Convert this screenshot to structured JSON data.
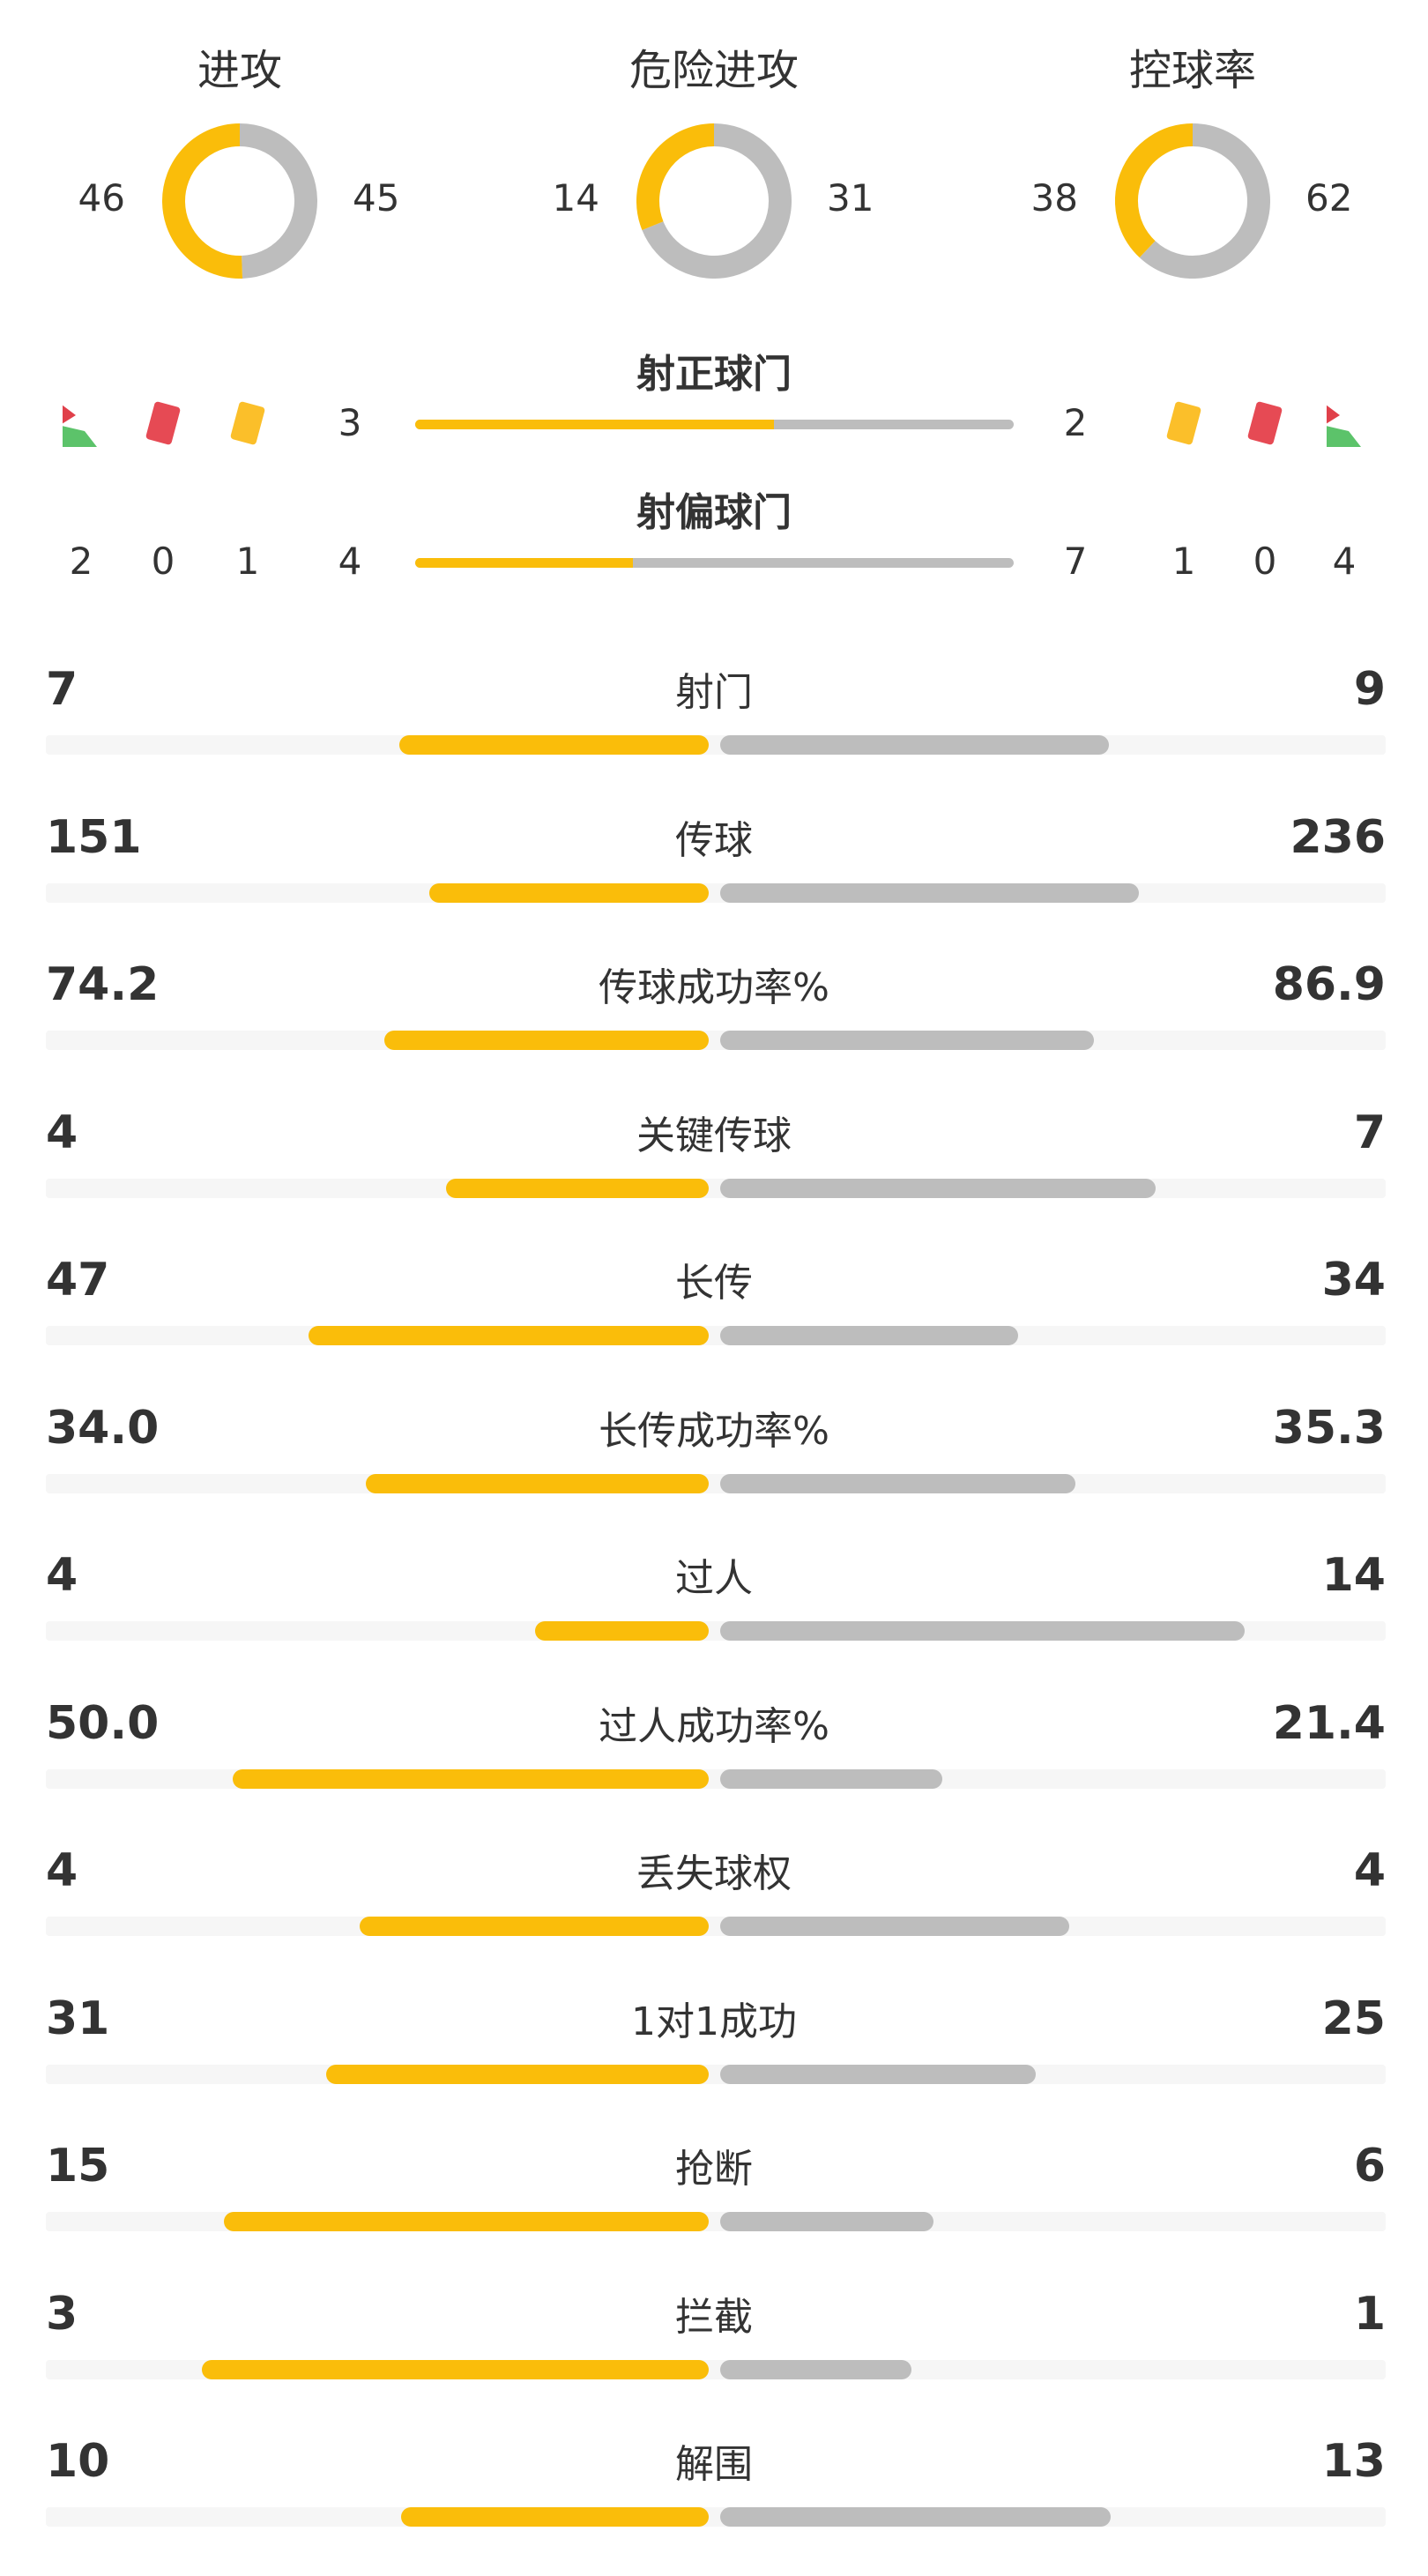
{
  "colors": {
    "home": "#fabd0a",
    "away": "#bdbdbd",
    "track": "#f6f6f6"
  },
  "donuts": [
    {
      "title": "进攻",
      "home": 46,
      "away": 45
    },
    {
      "title": "危险进攻",
      "home": 14,
      "away": 31
    },
    {
      "title": "控球率",
      "home": 38,
      "away": 62
    }
  ],
  "shots_on": {
    "title": "射正球门",
    "home": 3,
    "away": 2
  },
  "shots_off": {
    "title": "射偏球门",
    "home": 4,
    "away": 7
  },
  "home_counts": {
    "corners": 2,
    "red_cards": 0,
    "yellow_cards": 1
  },
  "away_counts": {
    "corners": 4,
    "red_cards": 0,
    "yellow_cards": 1
  },
  "icons": {
    "corner": "corner-flag-icon",
    "red": "red-card-icon",
    "yellow": "yellow-card-icon"
  },
  "stats": [
    {
      "label": "射门",
      "home": "7",
      "away": "9"
    },
    {
      "label": "传球",
      "home": "151",
      "away": "236"
    },
    {
      "label": "传球成功率%",
      "home": "74.2",
      "away": "86.9"
    },
    {
      "label": "关键传球",
      "home": "4",
      "away": "7"
    },
    {
      "label": "长传",
      "home": "47",
      "away": "34"
    },
    {
      "label": "长传成功率%",
      "home": "34.0",
      "away": "35.3"
    },
    {
      "label": "过人",
      "home": "4",
      "away": "14"
    },
    {
      "label": "过人成功率%",
      "home": "50.0",
      "away": "21.4"
    },
    {
      "label": "丢失球权",
      "home": "4",
      "away": "4"
    },
    {
      "label": "1对1成功",
      "home": "31",
      "away": "25"
    },
    {
      "label": "抢断",
      "home": "15",
      "away": "6"
    },
    {
      "label": "拦截",
      "home": "3",
      "away": "1"
    },
    {
      "label": "解围",
      "home": "10",
      "away": "13"
    }
  ]
}
